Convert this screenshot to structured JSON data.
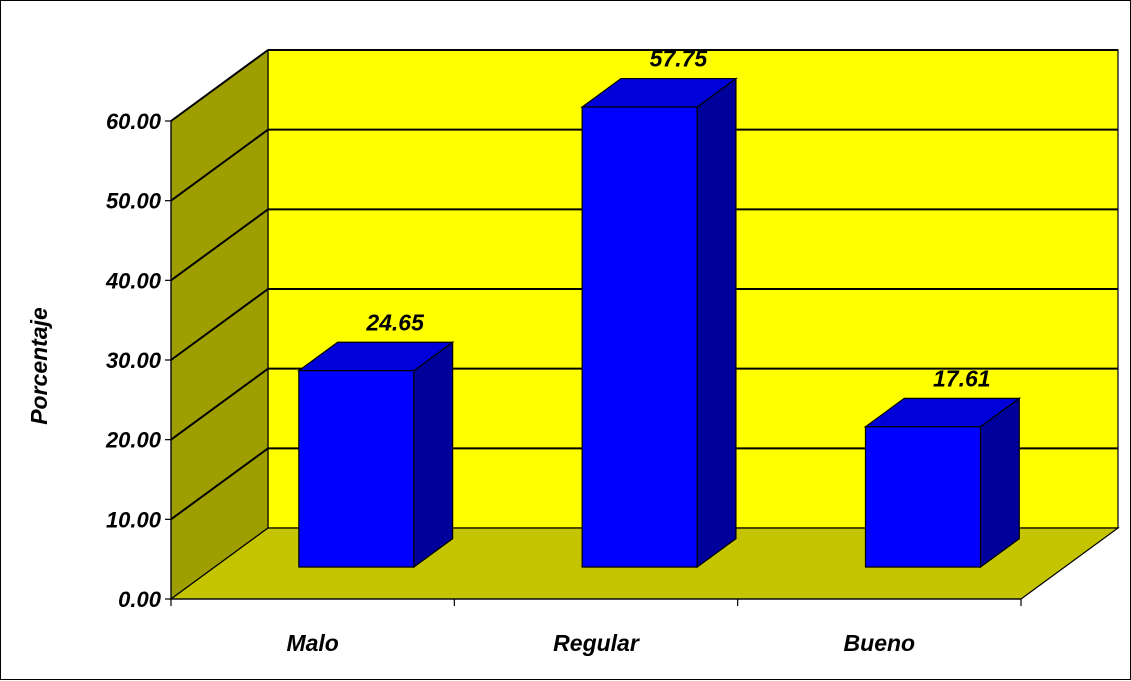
{
  "chart_data": {
    "type": "bar",
    "title": "",
    "xlabel": "",
    "ylabel": "Porcentaje",
    "categories": [
      "Malo",
      "Regular",
      "Bueno"
    ],
    "values": [
      24.65,
      57.75,
      17.61
    ],
    "value_labels": [
      "24.65",
      "57.75",
      "17.61"
    ],
    "ylim": [
      0,
      60
    ],
    "yticks": [
      0,
      10,
      20,
      30,
      40,
      50,
      60
    ],
    "ytick_labels": [
      "0.00",
      "10.00",
      "20.00",
      "30.00",
      "40.00",
      "50.00",
      "60.00"
    ],
    "grid": true,
    "legend": "none",
    "style": "3d",
    "colors": {
      "bar_front": "#0000ff",
      "bar_top": "#0000d8",
      "bar_side": "#00009a",
      "back_wall": "#ffff00",
      "side_wall": "#9e9e00",
      "floor": "#c4c400",
      "gridline": "#000000"
    }
  }
}
